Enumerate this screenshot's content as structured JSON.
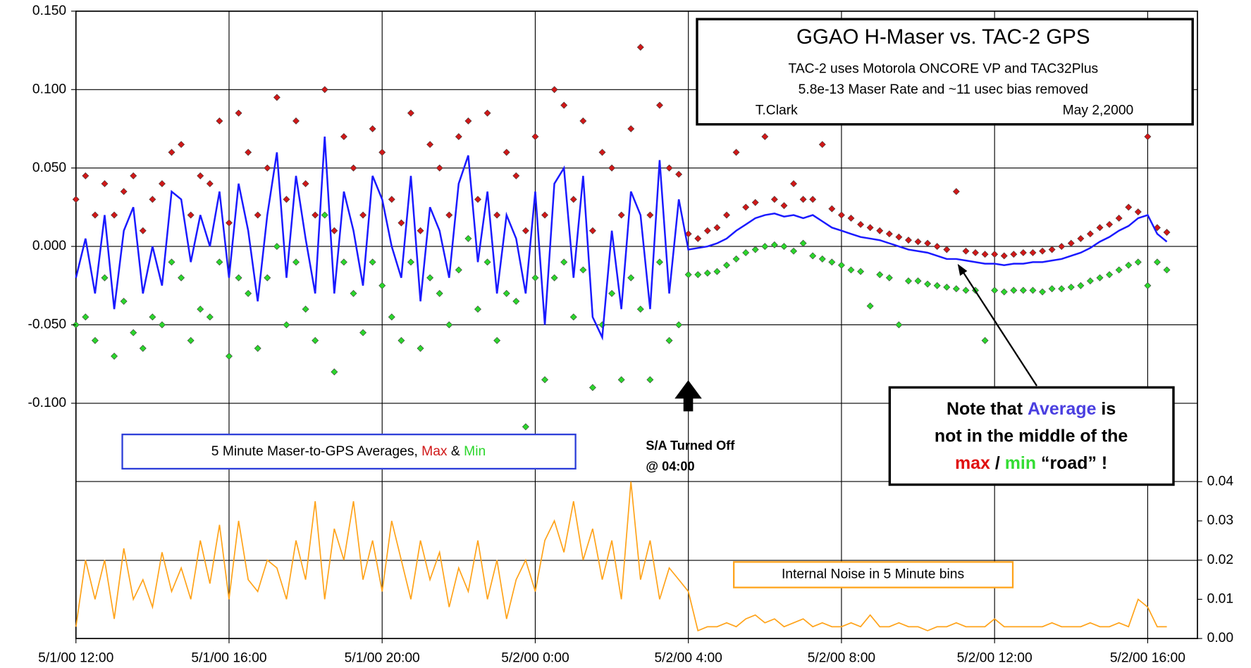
{
  "chart_data": {
    "type": "line",
    "title": "GGAO H-Maser vs. TAC-2 GPS",
    "subtitle_lines": [
      "TAC-2 uses Motorola ONCORE VP and TAC32Plus",
      "5.8e-13 Maser Rate and ~11 usec bias removed"
    ],
    "author": "T.Clark",
    "date": "May 2,2000",
    "x": [
      0,
      0.25,
      0.5,
      0.75,
      1,
      1.25,
      1.5,
      1.75,
      2,
      2.25,
      2.5,
      2.75,
      3,
      3.25,
      3.5,
      3.75,
      4,
      4.25,
      4.5,
      4.75,
      5,
      5.25,
      5.5,
      5.75,
      6,
      6.25,
      6.5,
      6.75,
      7,
      7.25,
      7.5,
      7.75,
      8,
      8.25,
      8.5,
      8.75,
      9,
      9.25,
      9.5,
      9.75,
      10,
      10.25,
      10.5,
      10.75,
      11,
      11.25,
      11.5,
      11.75,
      12,
      12.25,
      12.5,
      12.75,
      13,
      13.25,
      13.5,
      13.75,
      14,
      14.25,
      14.5,
      14.75,
      15,
      15.25,
      15.5,
      15.75,
      16,
      16.25,
      16.5,
      16.75,
      17,
      17.25,
      17.5,
      17.75,
      18,
      18.25,
      18.5,
      18.75,
      19,
      19.25,
      19.5,
      19.75,
      20,
      20.25,
      20.5,
      20.75,
      21,
      21.25,
      21.5,
      21.75,
      22,
      22.25,
      22.5,
      22.75,
      23,
      23.25,
      23.5,
      23.75,
      24,
      24.25,
      24.5,
      24.75,
      25,
      25.25,
      25.5,
      25.75,
      26,
      26.25,
      26.5,
      26.75,
      27,
      27.25,
      27.5,
      27.75,
      28,
      28.25,
      28.5
    ],
    "xlim": [
      0,
      29.3
    ],
    "xticks": [
      {
        "value": 0,
        "label": "5/1/00 12:00"
      },
      {
        "value": 4,
        "label": "5/1/00 16:00"
      },
      {
        "value": 8,
        "label": "5/1/00 20:00"
      },
      {
        "value": 12,
        "label": "5/2/00 0:00"
      },
      {
        "value": 16,
        "label": "5/2/00 4:00"
      },
      {
        "value": 20,
        "label": "5/2/00 8:00"
      },
      {
        "value": 24,
        "label": "5/2/00 12:00"
      },
      {
        "value": 28,
        "label": "5/2/00 16:00"
      }
    ],
    "ylim": [
      -0.25,
      0.15
    ],
    "yticks": [
      {
        "value": 0.15,
        "label": "0.150"
      },
      {
        "value": 0.1,
        "label": "0.100"
      },
      {
        "value": 0.05,
        "label": "0.050"
      },
      {
        "value": 0,
        "label": "0.000"
      },
      {
        "value": -0.05,
        "label": "-0.050"
      },
      {
        "value": -0.1,
        "label": "-0.100"
      }
    ],
    "y2lim": [
      0,
      0.16
    ],
    "y2ticks": [
      {
        "value": 0,
        "label": "0.00"
      },
      0.01,
      0.02,
      0.03,
      0.04
    ],
    "grid": true,
    "series": [
      {
        "name": "5 Minute Maser-to-GPS Averages",
        "color": "#1a1aff",
        "style": "line",
        "values": [
          -0.02,
          0.005,
          -0.03,
          0.02,
          -0.04,
          0.01,
          0.025,
          -0.03,
          0.0,
          -0.025,
          0.035,
          0.03,
          -0.01,
          0.02,
          0.0,
          0.035,
          -0.02,
          0.04,
          0.01,
          -0.035,
          0.02,
          0.06,
          -0.02,
          0.045,
          0.005,
          -0.03,
          0.07,
          -0.03,
          0.035,
          0.01,
          -0.025,
          0.045,
          0.03,
          0.0,
          -0.02,
          0.045,
          -0.035,
          0.025,
          0.01,
          -0.02,
          0.04,
          0.058,
          -0.01,
          0.035,
          -0.03,
          0.02,
          0.005,
          -0.03,
          0.035,
          -0.05,
          0.04,
          0.05,
          -0.02,
          0.045,
          -0.045,
          -0.058,
          0.01,
          -0.04,
          0.035,
          0.02,
          -0.04,
          0.055,
          -0.03,
          0.03,
          -0.002,
          -0.001,
          0.0,
          0.002,
          0.005,
          0.01,
          0.014,
          0.018,
          0.02,
          0.021,
          0.019,
          0.02,
          0.018,
          0.02,
          0.016,
          0.012,
          0.01,
          0.008,
          0.006,
          0.005,
          0.004,
          0.002,
          0.0,
          -0.002,
          -0.003,
          -0.004,
          -0.006,
          -0.008,
          -0.008,
          -0.009,
          -0.01,
          -0.011,
          -0.011,
          -0.012,
          -0.011,
          -0.011,
          -0.01,
          -0.01,
          -0.009,
          -0.008,
          -0.006,
          -0.004,
          -0.001,
          0.003,
          0.006,
          0.01,
          0.013,
          0.018,
          0.02,
          0.008,
          0.003
        ]
      },
      {
        "name": "Max",
        "color": "#d01818",
        "style": "marker",
        "values": [
          0.03,
          0.045,
          0.02,
          0.04,
          0.02,
          0.035,
          0.045,
          0.01,
          0.03,
          0.04,
          0.06,
          0.065,
          0.02,
          0.045,
          0.04,
          0.08,
          0.015,
          0.085,
          0.06,
          0.02,
          0.05,
          0.095,
          0.03,
          0.08,
          0.04,
          0.02,
          0.1,
          0.01,
          0.07,
          0.05,
          0.02,
          0.075,
          0.06,
          0.03,
          0.015,
          0.085,
          0.01,
          0.065,
          0.05,
          0.02,
          0.07,
          0.08,
          0.03,
          0.085,
          0.02,
          0.06,
          0.045,
          0.01,
          0.07,
          0.02,
          0.1,
          0.09,
          0.03,
          0.08,
          0.01,
          0.06,
          0.05,
          0.02,
          0.075,
          0.127,
          0.02,
          0.09,
          0.05,
          0.046,
          0.008,
          0.005,
          0.01,
          0.012,
          0.02,
          0.06,
          0.025,
          0.028,
          0.07,
          0.03,
          0.026,
          0.04,
          0.03,
          0.03,
          0.065,
          0.024,
          0.02,
          0.018,
          0.014,
          0.012,
          0.01,
          0.008,
          0.006,
          0.004,
          0.003,
          0.002,
          0.0,
          -0.002,
          0.035,
          -0.003,
          -0.004,
          -0.005,
          -0.005,
          -0.006,
          -0.005,
          -0.004,
          -0.004,
          -0.003,
          -0.002,
          0.0,
          0.002,
          0.005,
          0.008,
          0.012,
          0.014,
          0.018,
          0.025,
          0.022,
          0.07,
          0.012,
          0.009
        ]
      },
      {
        "name": "Min",
        "color": "#2cd62c",
        "style": "marker",
        "values": [
          -0.05,
          -0.045,
          -0.06,
          -0.02,
          -0.07,
          -0.035,
          -0.055,
          -0.065,
          -0.045,
          -0.05,
          -0.01,
          -0.02,
          -0.06,
          -0.04,
          -0.045,
          -0.01,
          -0.07,
          -0.02,
          -0.03,
          -0.065,
          -0.02,
          0.0,
          -0.05,
          -0.01,
          -0.04,
          -0.06,
          0.02,
          -0.08,
          -0.01,
          -0.03,
          -0.055,
          -0.01,
          -0.025,
          -0.045,
          -0.06,
          -0.01,
          -0.065,
          -0.02,
          -0.03,
          -0.05,
          -0.015,
          0.005,
          -0.04,
          -0.01,
          -0.06,
          -0.03,
          -0.035,
          -0.115,
          -0.02,
          -0.085,
          -0.02,
          -0.01,
          -0.045,
          -0.015,
          -0.09,
          -0.05,
          -0.03,
          -0.085,
          -0.02,
          -0.04,
          -0.085,
          -0.01,
          -0.06,
          -0.05,
          -0.018,
          -0.018,
          -0.017,
          -0.016,
          -0.012,
          -0.008,
          -0.004,
          -0.002,
          0.0,
          0.001,
          0.0,
          -0.003,
          0.002,
          -0.006,
          -0.008,
          -0.01,
          -0.012,
          -0.015,
          -0.016,
          -0.038,
          -0.018,
          -0.02,
          -0.05,
          -0.022,
          -0.022,
          -0.024,
          -0.025,
          -0.026,
          -0.027,
          -0.028,
          -0.028,
          -0.06,
          -0.028,
          -0.029,
          -0.028,
          -0.028,
          -0.028,
          -0.029,
          -0.027,
          -0.027,
          -0.026,
          -0.025,
          -0.022,
          -0.02,
          -0.018,
          -0.015,
          -0.012,
          -0.01,
          -0.025,
          -0.01,
          -0.015
        ]
      },
      {
        "name": "Internal Noise in 5 Minute bins",
        "color": "#ffa31a",
        "style": "line",
        "axis": "y2",
        "values": [
          0.003,
          0.02,
          0.01,
          0.02,
          0.005,
          0.023,
          0.01,
          0.015,
          0.008,
          0.022,
          0.012,
          0.018,
          0.01,
          0.025,
          0.014,
          0.029,
          0.01,
          0.03,
          0.015,
          0.012,
          0.02,
          0.018,
          0.01,
          0.025,
          0.015,
          0.035,
          0.01,
          0.028,
          0.02,
          0.035,
          0.015,
          0.025,
          0.012,
          0.03,
          0.02,
          0.01,
          0.025,
          0.015,
          0.022,
          0.008,
          0.018,
          0.012,
          0.025,
          0.01,
          0.02,
          0.005,
          0.015,
          0.02,
          0.012,
          0.025,
          0.03,
          0.022,
          0.035,
          0.02,
          0.028,
          0.015,
          0.025,
          0.01,
          0.04,
          0.015,
          0.025,
          0.01,
          0.018,
          0.015,
          0.012,
          0.002,
          0.003,
          0.003,
          0.004,
          0.003,
          0.005,
          0.006,
          0.004,
          0.005,
          0.003,
          0.004,
          0.005,
          0.003,
          0.004,
          0.003,
          0.003,
          0.004,
          0.003,
          0.006,
          0.003,
          0.003,
          0.004,
          0.003,
          0.003,
          0.002,
          0.003,
          0.003,
          0.004,
          0.003,
          0.003,
          0.003,
          0.005,
          0.003,
          0.003,
          0.003,
          0.003,
          0.003,
          0.004,
          0.003,
          0.003,
          0.003,
          0.004,
          0.003,
          0.003,
          0.004,
          0.003,
          0.01,
          0.008,
          0.003,
          0.003
        ]
      }
    ],
    "legend_joiners": [
      ", ",
      " & "
    ],
    "annotations": {
      "sa_off": [
        "S/A Turned Off",
        "@ 04:00"
      ],
      "note": [
        [
          {
            "text": "Note that "
          },
          {
            "text": "Average",
            "color": "#4a3fe0"
          },
          {
            "text": " is"
          }
        ],
        [
          {
            "text": "not in the middle of the"
          }
        ],
        [
          {
            "text": "max",
            "color": "#e01010"
          },
          {
            "text": " / "
          },
          {
            "text": "min",
            "color": "#33dd33"
          },
          {
            "text": " “road” !"
          }
        ]
      ]
    }
  }
}
